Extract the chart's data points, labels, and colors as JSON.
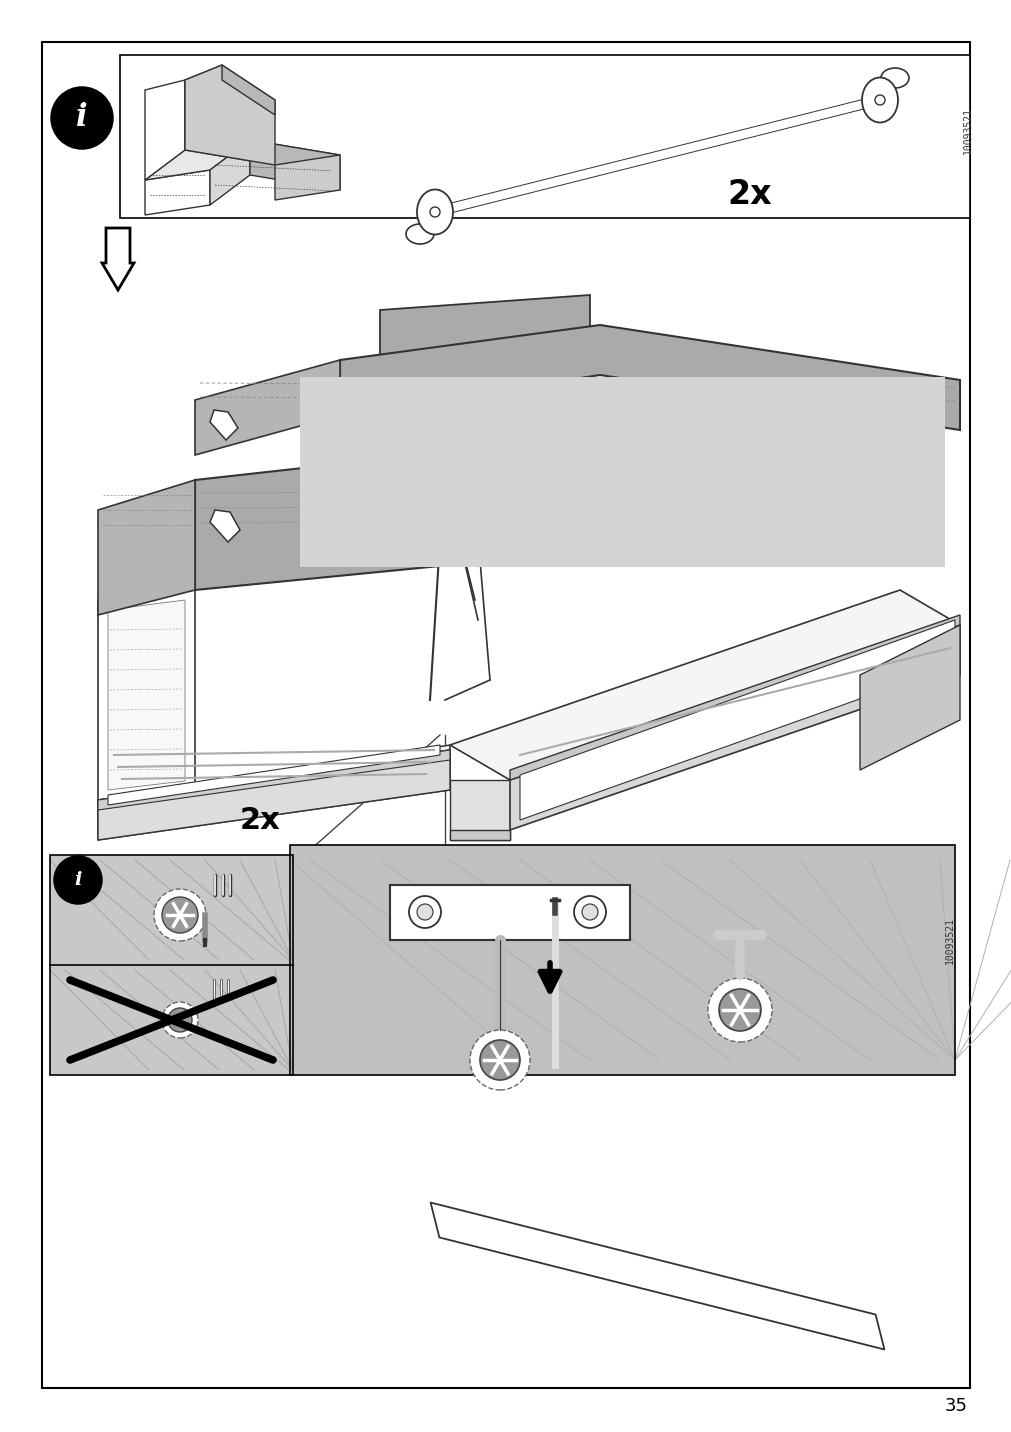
{
  "page_number": "35",
  "bg": "#ffffff",
  "lc": "#333333",
  "gl": "#cccccc",
  "gm": "#aaaaaa",
  "gd": "#777777",
  "black": "#000000",
  "white": "#ffffff",
  "pn1": "10093521",
  "pn2": "10093521",
  "qty1": "2x",
  "qty2": "2x",
  "PW": 1012,
  "PH": 1432
}
